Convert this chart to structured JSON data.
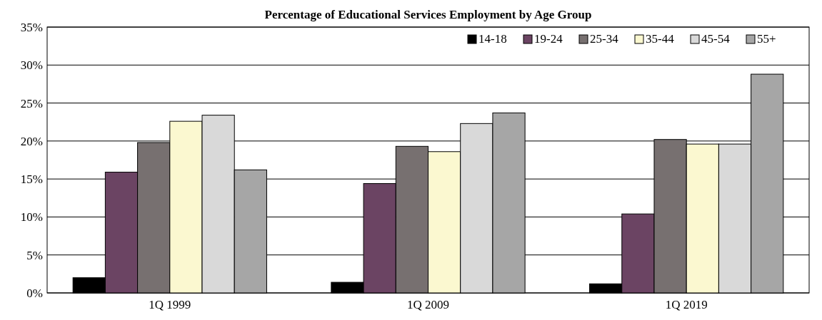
{
  "chart_data": {
    "type": "bar",
    "title": "Percentage of Educational Services Employment by Age Group",
    "categories": [
      "1Q 1999",
      "1Q 2009",
      "1Q 2019"
    ],
    "series": [
      {
        "name": "14-18",
        "color": "#000000",
        "values": [
          2.0,
          1.4,
          1.2
        ]
      },
      {
        "name": "19-24",
        "color": "#6b4463",
        "values": [
          15.9,
          14.4,
          10.4
        ]
      },
      {
        "name": "25-34",
        "color": "#777070",
        "values": [
          19.8,
          19.3,
          20.2
        ]
      },
      {
        "name": "35-44",
        "color": "#fbf8d0",
        "values": [
          22.6,
          18.6,
          19.6
        ]
      },
      {
        "name": "45-54",
        "color": "#d9d9d9",
        "values": [
          23.4,
          22.3,
          19.6
        ]
      },
      {
        "name": "55+",
        "color": "#a6a6a6",
        "values": [
          16.2,
          23.7,
          28.8
        ]
      }
    ],
    "ylim": [
      0,
      35
    ],
    "yticks": [
      {
        "value": 0,
        "label": "0%"
      },
      {
        "value": 5,
        "label": "5%"
      },
      {
        "value": 10,
        "label": "10%"
      },
      {
        "value": 15,
        "label": "15%"
      },
      {
        "value": 20,
        "label": "20%"
      },
      {
        "value": 25,
        "label": "25%"
      },
      {
        "value": 30,
        "label": "30%"
      },
      {
        "value": 35,
        "label": "35%"
      }
    ],
    "grid": "y",
    "legend": "top right"
  }
}
